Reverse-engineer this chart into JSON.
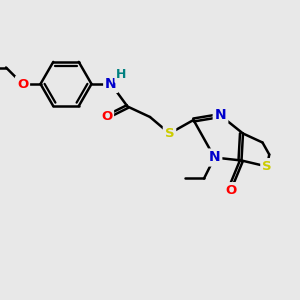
{
  "bg_color": "#e8e8e8",
  "atom_colors": {
    "C": "#000000",
    "N": "#0000cc",
    "O": "#ff0000",
    "S": "#cccc00",
    "H": "#008080"
  },
  "bond_color": "#000000",
  "bond_width": 1.8,
  "fig_bg": "#e8e8e8"
}
